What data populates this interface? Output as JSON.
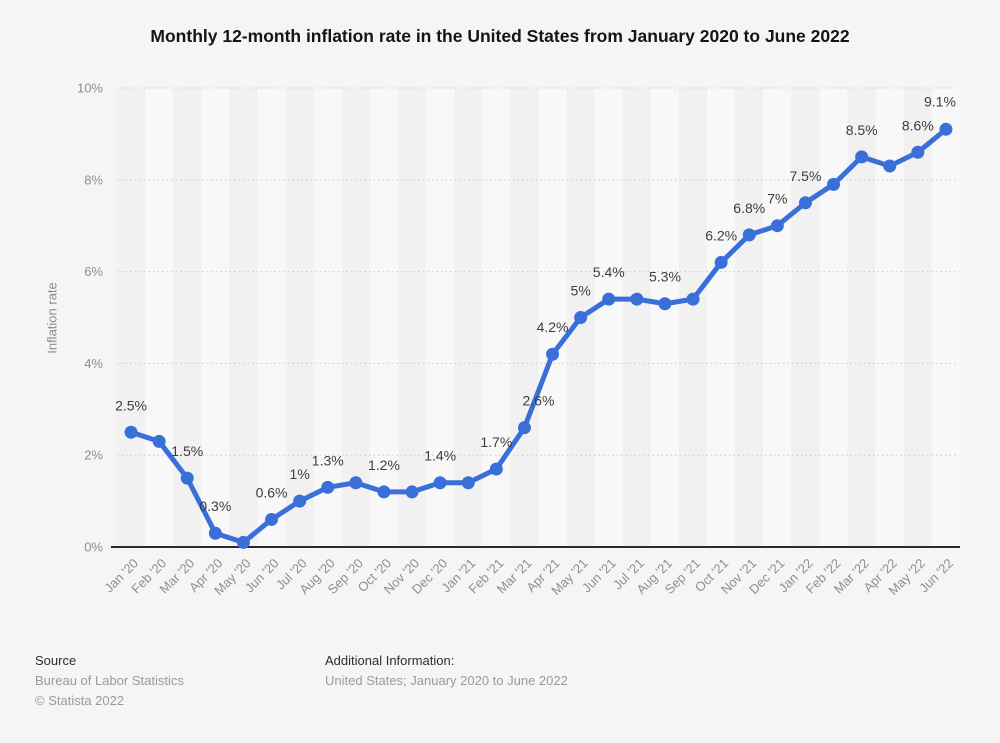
{
  "title": "Monthly 12-month inflation rate in the United States from January 2020 to June 2022",
  "colors": {
    "background": "#f5f5f5",
    "accent_line": "#3a6fd9",
    "grid": "#c9c9c9",
    "axis": "#2b2b2b",
    "tick_text": "#8f8f8f",
    "point_label_text": "#3d3d3d",
    "band_dark": "#f1f1f1",
    "band_light": "#f8f8f8"
  },
  "chart_data": {
    "type": "line",
    "title": "Monthly 12-month inflation rate in the United States from January 2020 to June 2022",
    "xlabel": "",
    "ylabel": "Inflation rate",
    "ylim": [
      0,
      10
    ],
    "grid": "horizontal dotted, on",
    "legend": "none",
    "yticks": [
      {
        "value": 0,
        "label": "0%"
      },
      {
        "value": 2,
        "label": "2%"
      },
      {
        "value": 4,
        "label": "4%"
      },
      {
        "value": 6,
        "label": "6%"
      },
      {
        "value": 8,
        "label": "8%"
      },
      {
        "value": 10,
        "label": "10%"
      }
    ],
    "categories": [
      "Jan '20",
      "Feb '20",
      "Mar '20",
      "Apr '20",
      "May '20",
      "Jun '20",
      "Jul '20",
      "Aug '20",
      "Sep '20",
      "Oct '20",
      "Nov '20",
      "Dec '20",
      "Jan '21",
      "Feb '21",
      "Mar '21",
      "Apr '21",
      "May '21",
      "Jun '21",
      "Jul '21",
      "Aug '21",
      "Sep '21",
      "Oct '21",
      "Nov '21",
      "Dec '21",
      "Jan '22",
      "Feb '22",
      "Mar '22",
      "Apr '22",
      "May '22",
      "Jun '22"
    ],
    "values": [
      2.5,
      2.3,
      1.5,
      0.3,
      0.1,
      0.6,
      1.0,
      1.3,
      1.4,
      1.2,
      1.2,
      1.4,
      1.4,
      1.7,
      2.6,
      4.2,
      5.0,
      5.4,
      5.4,
      5.3,
      5.4,
      6.2,
      6.8,
      7.0,
      7.5,
      7.9,
      8.5,
      8.3,
      8.6,
      9.1
    ],
    "point_labels": [
      "2.5%",
      "",
      "1.5%",
      "0.3%",
      "",
      "0.6%",
      "1%",
      "1.3%",
      "",
      "1.2%",
      "",
      "1.4%",
      "",
      "1.7%",
      "2.6%",
      "4.2%",
      "5%",
      "5.4%",
      "",
      "5.3%",
      "",
      "6.2%",
      "6.8%",
      "7%",
      "7.5%",
      "",
      "8.5%",
      "",
      "8.6%",
      "9.1%"
    ]
  },
  "footer": {
    "source_heading": "Source",
    "source_name": "Bureau of Labor Statistics",
    "copyright": "© Statista 2022",
    "additional_heading": "Additional Information:",
    "additional_text": "United States; January 2020 to June 2022"
  }
}
